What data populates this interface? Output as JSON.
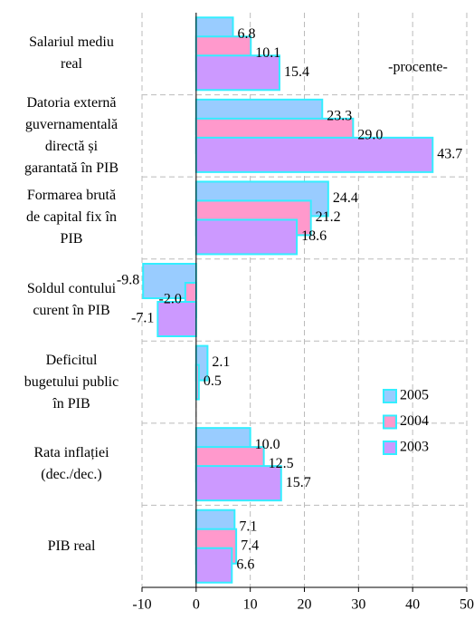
{
  "chart_data": {
    "type": "hbar",
    "annotation": "-procente-",
    "categories": [
      "Salariul mediu\nreal",
      "Datoria externă\nguvernamentală\ndirectă și\ngarantată în PIB",
      "Formarea brută\nde capital fix în\nPIB",
      "Soldul contului\ncurent în PIB",
      "Deficitul\nbugetului public\nîn PIB",
      "Rata inflației\n(dec./dec.)",
      "PIB real"
    ],
    "series": [
      {
        "name": "2005",
        "color": "#99ccff",
        "values": [
          6.8,
          23.3,
          24.4,
          -9.8,
          2.1,
          10.0,
          7.1
        ],
        "value_labels": [
          "6.8",
          "23.3",
          "24.4",
          "-9.8",
          "2.1",
          "10.0",
          "7.1"
        ]
      },
      {
        "name": "2004",
        "color": "#ff99cc",
        "values": [
          10.1,
          29.0,
          21.2,
          -2.0,
          0.5,
          12.5,
          7.4
        ],
        "value_labels": [
          "10.1",
          "29.0",
          "21.2",
          "-2.0",
          "0.5",
          "12.5",
          "7.4"
        ]
      },
      {
        "name": "2003",
        "color": "#cc99ff",
        "values": [
          15.4,
          43.7,
          18.6,
          -7.1,
          null,
          15.7,
          6.6
        ],
        "value_labels": [
          "15.4",
          "43.7",
          "18.6",
          "-7.1",
          null,
          "15.7",
          "6.6"
        ]
      }
    ],
    "edge_color": "#33eeff",
    "xlim": [
      -10,
      50
    ],
    "xticks": [
      -10,
      0,
      10,
      20,
      30,
      40,
      50
    ],
    "grid": true
  }
}
